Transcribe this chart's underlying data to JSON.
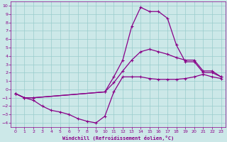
{
  "bg_color": "#cce8e8",
  "line_color": "#880088",
  "grid_color": "#99cccc",
  "xlabel": "Windchill (Refroidissement éolien,°C)",
  "xlim": [
    -0.5,
    23.5
  ],
  "ylim": [
    -4.5,
    10.5
  ],
  "xticks": [
    0,
    1,
    2,
    3,
    4,
    5,
    6,
    7,
    8,
    9,
    10,
    11,
    12,
    13,
    14,
    15,
    16,
    17,
    18,
    19,
    20,
    21,
    22,
    23
  ],
  "yticks": [
    -4,
    -3,
    -2,
    -1,
    0,
    1,
    2,
    3,
    4,
    5,
    6,
    7,
    8,
    9,
    10
  ],
  "line1_x": [
    0,
    1,
    2,
    3,
    4,
    5,
    6,
    7,
    8,
    9,
    10,
    11,
    12,
    13,
    14,
    15,
    16,
    17,
    18,
    19,
    20,
    21,
    22,
    23
  ],
  "line1_y": [
    -0.5,
    -1.0,
    -1.3,
    -2.0,
    -2.5,
    -2.7,
    -3.0,
    -3.5,
    -3.8,
    -4.0,
    -3.2,
    -0.3,
    1.5,
    1.5,
    1.5,
    1.3,
    1.2,
    1.2,
    1.2,
    1.3,
    1.5,
    1.8,
    1.5,
    1.3
  ],
  "line2_x": [
    0,
    1,
    2,
    10,
    11,
    12,
    13,
    14,
    15,
    16,
    17,
    18,
    19,
    20,
    21,
    22,
    23
  ],
  "line2_y": [
    -0.5,
    -1.0,
    -1.0,
    -0.3,
    1.5,
    3.5,
    7.5,
    9.8,
    9.3,
    9.3,
    8.5,
    5.3,
    3.3,
    3.3,
    2.0,
    2.0,
    1.5
  ],
  "line3_x": [
    0,
    1,
    2,
    10,
    11,
    12,
    13,
    14,
    15,
    16,
    17,
    18,
    19,
    20,
    21,
    22,
    23
  ],
  "line3_y": [
    -0.5,
    -1.0,
    -1.0,
    -0.3,
    0.8,
    2.2,
    3.5,
    4.5,
    4.8,
    4.5,
    4.2,
    3.8,
    3.5,
    3.5,
    2.2,
    2.2,
    1.5
  ]
}
